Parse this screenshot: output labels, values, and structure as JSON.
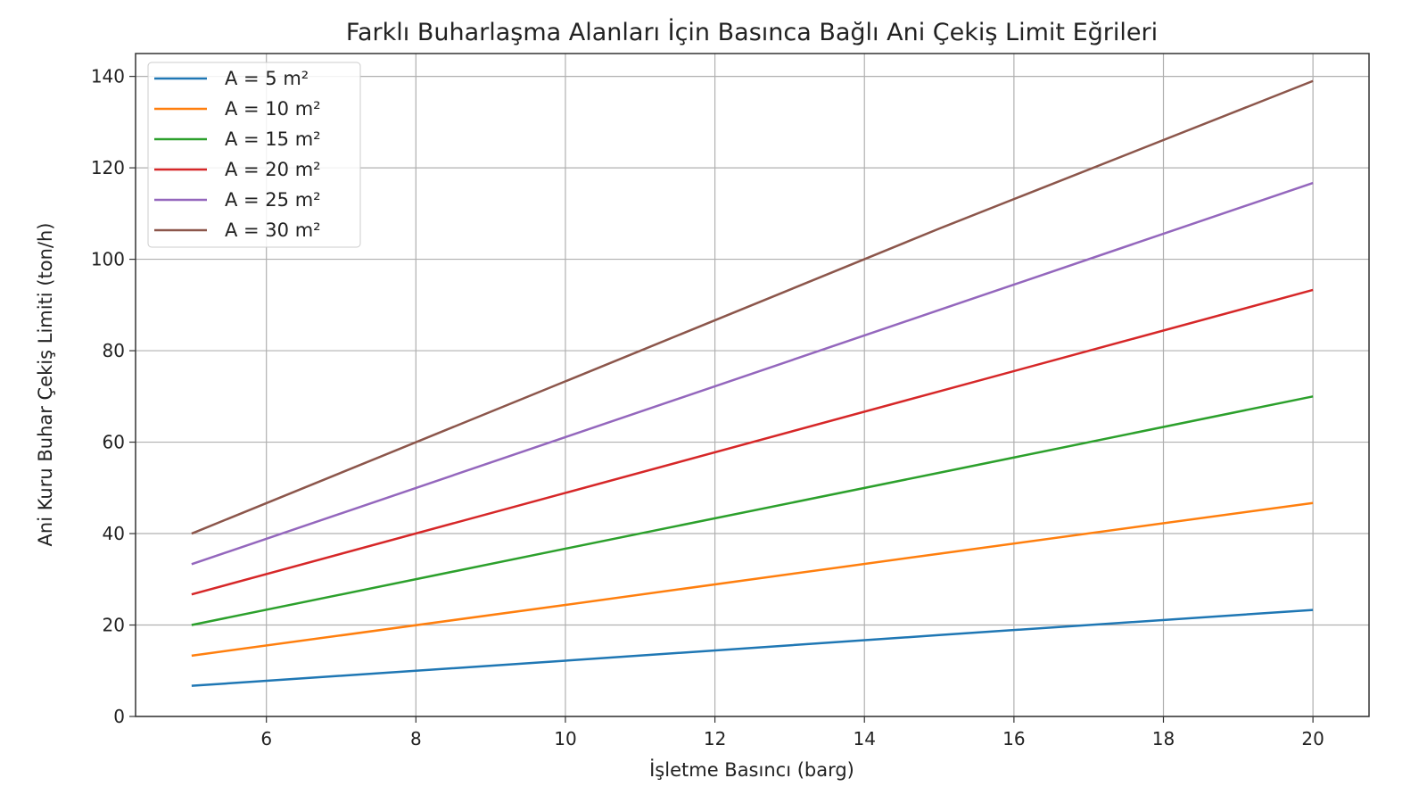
{
  "chart_data": {
    "type": "line",
    "title": "Farklı Buharlaşma Alanları İçin Basınca Bağlı Ani Çekiş Limit Eğrileri",
    "xlabel": "İşletme Basıncı (barg)",
    "ylabel": "Ani Kuru Buhar Çekiş Limiti (ton/h)",
    "xlim": [
      4.25,
      20.75
    ],
    "ylim": [
      0,
      145
    ],
    "xticks": [
      6,
      8,
      10,
      12,
      14,
      16,
      18,
      20
    ],
    "yticks": [
      0,
      20,
      40,
      60,
      80,
      100,
      120,
      140
    ],
    "grid": true,
    "legend_position": "top-left",
    "x": [
      5,
      10,
      15,
      20
    ],
    "series": [
      {
        "name": "A = 5 m²",
        "color": "#1f77b4",
        "values": [
          6.7,
          12.2,
          17.8,
          23.3
        ]
      },
      {
        "name": "A = 10 m²",
        "color": "#ff7f0e",
        "values": [
          13.3,
          24.4,
          35.6,
          46.7
        ]
      },
      {
        "name": "A = 15 m²",
        "color": "#2ca02c",
        "values": [
          20.0,
          36.7,
          53.3,
          70.0
        ]
      },
      {
        "name": "A = 20 m²",
        "color": "#d62728",
        "values": [
          26.7,
          48.9,
          71.1,
          93.3
        ]
      },
      {
        "name": "A = 25 m²",
        "color": "#9467bd",
        "values": [
          33.3,
          61.1,
          88.9,
          116.7
        ]
      },
      {
        "name": "A = 30 m²",
        "color": "#8c564b",
        "values": [
          40.0,
          73.3,
          106.7,
          139.0
        ]
      }
    ]
  }
}
